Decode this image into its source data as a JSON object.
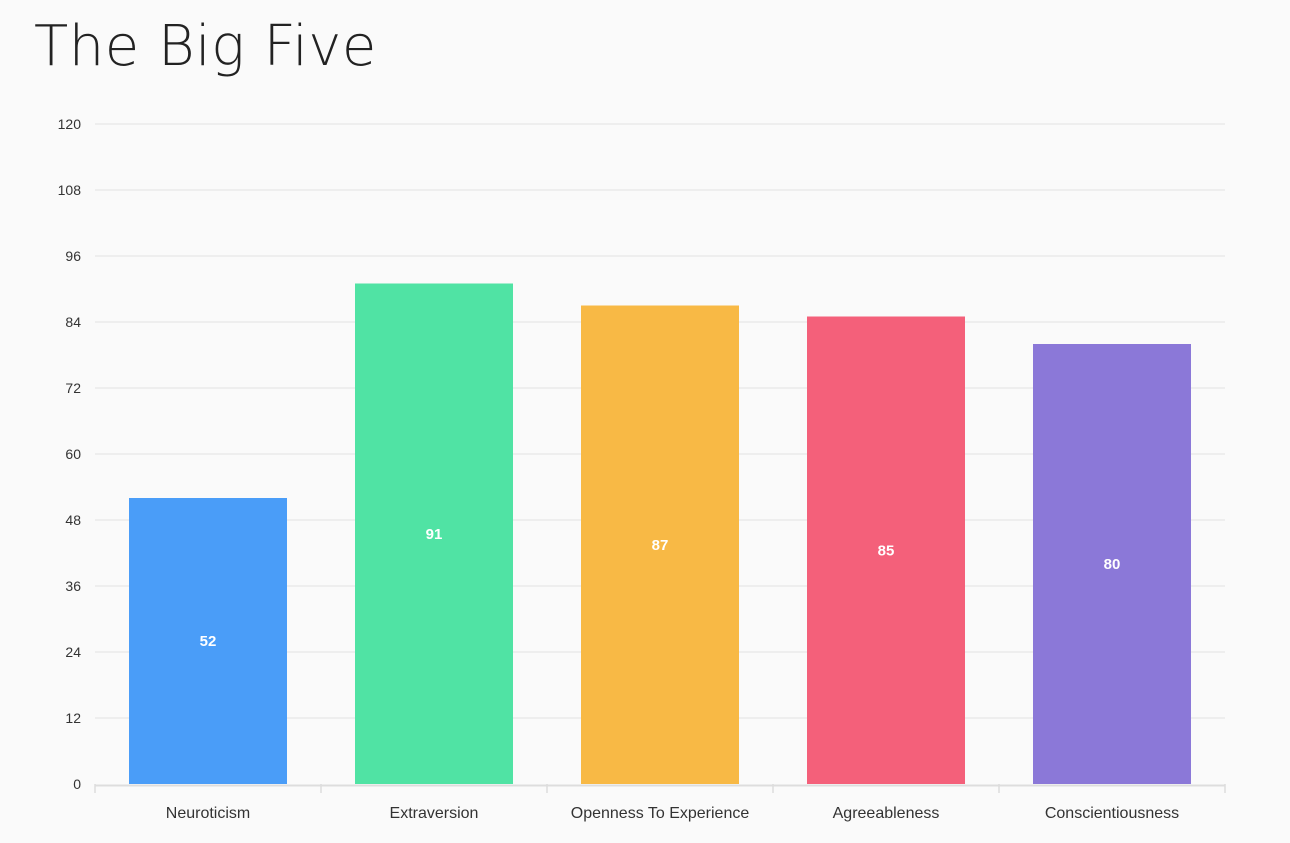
{
  "chart_data": {
    "type": "bar",
    "title": "The Big Five",
    "categories": [
      "Neuroticism",
      "Extraversion",
      "Openness To Experience",
      "Agreeableness",
      "Conscientiousness"
    ],
    "values": [
      52,
      91,
      87,
      85,
      80
    ],
    "colors": [
      "#4a9df8",
      "#50e3a4",
      "#f8b945",
      "#f4607a",
      "#8b78d8"
    ],
    "ylim": [
      0,
      120
    ],
    "yticks": [
      0,
      12,
      24,
      36,
      48,
      60,
      72,
      84,
      96,
      108,
      120
    ],
    "xlabel": "",
    "ylabel": "",
    "grid": true,
    "legend": "none",
    "data_labels": true
  }
}
